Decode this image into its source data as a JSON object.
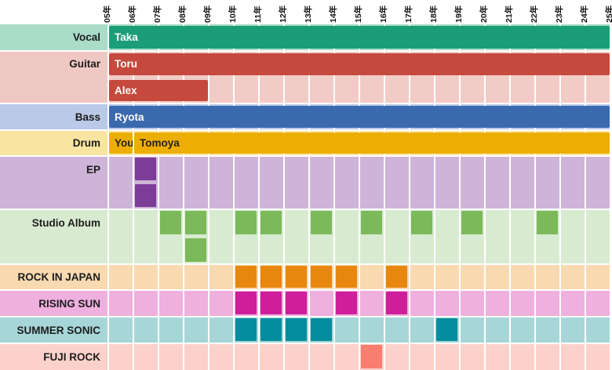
{
  "chart_data": {
    "type": "gantt",
    "title": "",
    "legend": "none",
    "grid": "white separators between year columns and section rows",
    "x_axis": {
      "unit": "year",
      "start_year": 2005,
      "end_year": 2025,
      "tick_labels": [
        "05年",
        "06年",
        "07年",
        "08年",
        "09年",
        "10年",
        "11年",
        "12年",
        "13年",
        "14年",
        "15年",
        "16年",
        "17年",
        "18年",
        "19年",
        "20年",
        "21年",
        "22年",
        "23年",
        "24年",
        "25年"
      ],
      "tick_label_rotation_deg": -90
    },
    "sections": [
      {
        "label": "Vocal",
        "label_bg": "#a9dcc9",
        "track_bg": "#a9dcc9",
        "bar_color": "#1b9e77",
        "bar_text_color": "#ffffff",
        "rows": [
          {
            "bars": [
              {
                "name": "Taka",
                "start": 2005,
                "end": 2025
              }
            ]
          }
        ]
      },
      {
        "label": "Guitar",
        "label_bg": "#f0c8c3",
        "track_bg": "#f2cbc6",
        "bar_color": "#c5493c",
        "bar_text_color": "#ffffff",
        "rows": [
          {
            "bars": [
              {
                "name": "Toru",
                "start": 2005,
                "end": 2025
              }
            ]
          },
          {
            "bars": [
              {
                "name": "Alex",
                "start": 2005,
                "end": 2009
              }
            ]
          }
        ]
      },
      {
        "label": "Bass",
        "label_bg": "#bac9e7",
        "track_bg": "#bac9e7",
        "bar_color": "#3a69ae",
        "bar_text_color": "#ffffff",
        "rows": [
          {
            "bars": [
              {
                "name": "Ryota",
                "start": 2005,
                "end": 2025
              }
            ]
          }
        ]
      },
      {
        "label": "Drum",
        "label_bg": "#f9e5a1",
        "track_bg": "#f9e5a1",
        "bar_color": "#edae03",
        "bar_text_color": "#222222",
        "rows": [
          {
            "bars": [
              {
                "name": "You",
                "start": 2005,
                "end": 2006
              },
              {
                "name": "Tomoya",
                "start": 2006,
                "end": 2025
              }
            ]
          }
        ]
      },
      {
        "label": "EP",
        "label_bg": "#cdb4d8",
        "track_bg": "#cdb4d8",
        "cell_color": "#7c3d99",
        "rows": [
          {
            "years": [
              2006
            ]
          },
          {
            "years": [
              2006
            ]
          }
        ]
      },
      {
        "label": "Studio Album",
        "label_bg": "#d8ebd0",
        "track_bg": "#d8ebd0",
        "cell_color": "#7bb95a",
        "rows": [
          {
            "years": [
              2007,
              2008,
              2010,
              2011,
              2013,
              2015,
              2017,
              2019,
              2022
            ]
          },
          {
            "years": [
              2008
            ]
          }
        ]
      },
      {
        "label": "ROCK IN JAPAN",
        "label_bg": "#f8d9b0",
        "track_bg": "#f8d9b0",
        "cell_color": "#e8870e",
        "rows": [
          {
            "years": [
              2010,
              2011,
              2012,
              2013,
              2014,
              2016
            ]
          }
        ]
      },
      {
        "label": "RISING SUN",
        "label_bg": "#efafdf",
        "track_bg": "#efafdf",
        "cell_color": "#ce1e99",
        "rows": [
          {
            "years": [
              2010,
              2011,
              2012,
              2014,
              2016
            ]
          }
        ]
      },
      {
        "label": "SUMMER SONIC",
        "label_bg": "#a7d6d8",
        "track_bg": "#a7d6d8",
        "cell_color": "#038d9e",
        "rows": [
          {
            "years": [
              2010,
              2011,
              2012,
              2013,
              2018
            ]
          }
        ]
      },
      {
        "label": "FUJI ROCK",
        "label_bg": "#fdd1cb",
        "track_bg": "#fdd1cb",
        "cell_color": "#f87e6f",
        "rows": [
          {
            "years": [
              2015
            ]
          }
        ]
      }
    ]
  }
}
